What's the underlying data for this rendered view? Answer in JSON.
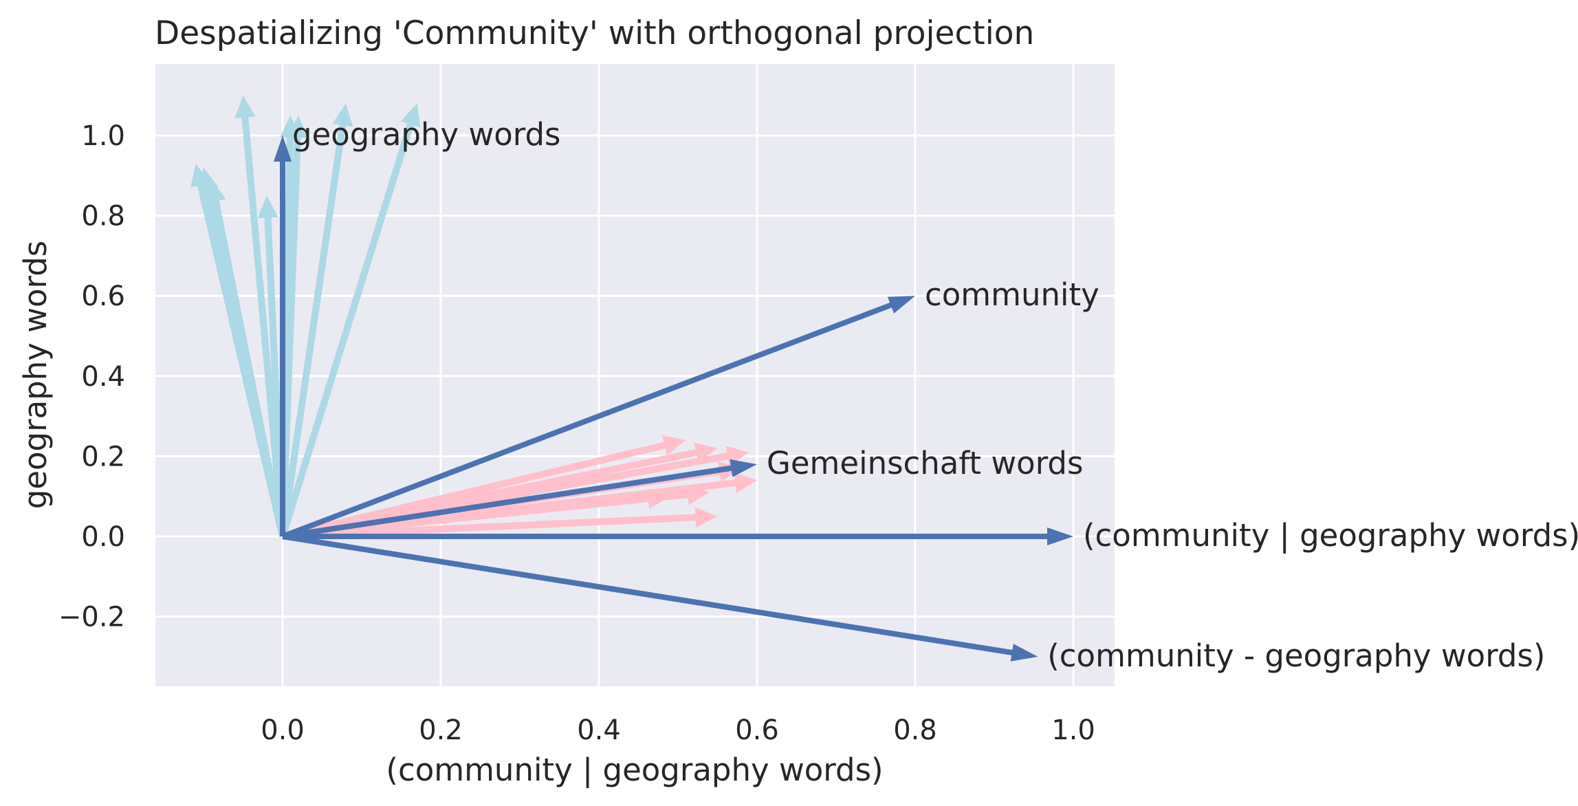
{
  "chart_data": {
    "type": "quiver",
    "title": "Despatializing 'Community' with orthogonal projection",
    "xlabel": "(community | geography words)",
    "ylabel": "geography words",
    "xlim": [
      -0.16,
      1.05
    ],
    "ylim": [
      -0.37,
      1.17
    ],
    "xticks": [
      0.0,
      0.2,
      0.4,
      0.6,
      0.8,
      1.0
    ],
    "xtick_labels": [
      "0.0",
      "0.2",
      "0.4",
      "0.6",
      "0.8",
      "1.0"
    ],
    "yticks": [
      -0.2,
      0.0,
      0.2,
      0.4,
      0.6,
      0.8,
      1.0
    ],
    "ytick_labels": [
      "−0.2",
      "0.0",
      "0.2",
      "0.4",
      "0.6",
      "0.8",
      "1.0"
    ],
    "grid": true,
    "background": "#eaeaf2",
    "colors": {
      "geography": "#add8e6",
      "gemeinschaft": "#ffc0cb",
      "main": "#4c72b0"
    },
    "geography_vectors": [
      [
        -0.05,
        1.1
      ],
      [
        -0.1,
        0.92
      ],
      [
        -0.11,
        0.93
      ],
      [
        -0.09,
        0.89
      ],
      [
        -0.02,
        0.85
      ],
      [
        0.01,
        1.05
      ],
      [
        0.02,
        1.05
      ],
      [
        0.08,
        1.08
      ],
      [
        0.17,
        1.08
      ]
    ],
    "gemeinschaft_vectors": [
      [
        0.51,
        0.24
      ],
      [
        0.55,
        0.22
      ],
      [
        0.59,
        0.21
      ],
      [
        0.58,
        0.17
      ],
      [
        0.6,
        0.14
      ],
      [
        0.54,
        0.11
      ],
      [
        0.55,
        0.05
      ],
      [
        0.49,
        0.1
      ]
    ],
    "main_vectors": [
      {
        "label": "geography words",
        "x": 0.0,
        "y": 1.0
      },
      {
        "label": "community",
        "x": 0.8,
        "y": 0.6
      },
      {
        "label": "Gemeinschaft words",
        "x": 0.6,
        "y": 0.18
      },
      {
        "label": "(community | geography words)",
        "x": 1.0,
        "y": 0.0
      },
      {
        "label": "(community - geography words)",
        "x": 0.955,
        "y": -0.3
      }
    ]
  }
}
